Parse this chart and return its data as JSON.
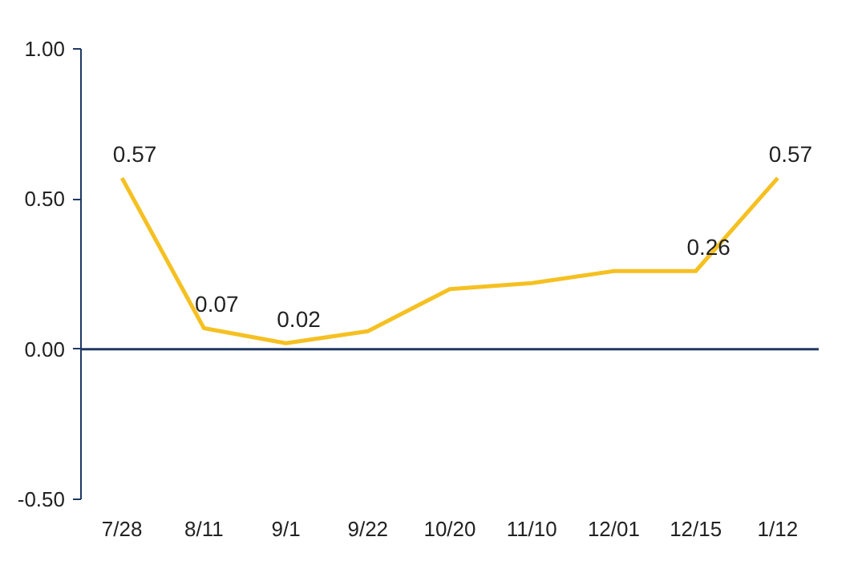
{
  "chart_data": {
    "type": "line",
    "categories": [
      "7/28",
      "8/11",
      "9/1",
      "9/22",
      "10/20",
      "11/10",
      "12/01",
      "12/15",
      "1/12"
    ],
    "series": [
      {
        "color": "#f5c021",
        "values": [
          0.57,
          0.07,
          0.02,
          0.06,
          0.2,
          0.22,
          0.26,
          0.26,
          0.57
        ],
        "value_labels": [
          "0.57",
          "0.07",
          "0.02",
          null,
          null,
          null,
          null,
          "0.26",
          "0.57"
        ]
      }
    ],
    "ylim": [
      -0.5,
      1.0
    ],
    "yticks": [
      "-0.50",
      "0.00",
      "0.50",
      "1.00"
    ],
    "ref_lines": [
      {
        "axis": "y",
        "value": 0,
        "color": "#1f3864"
      }
    ],
    "grid": false,
    "marker": "none",
    "line_style": "solid"
  }
}
